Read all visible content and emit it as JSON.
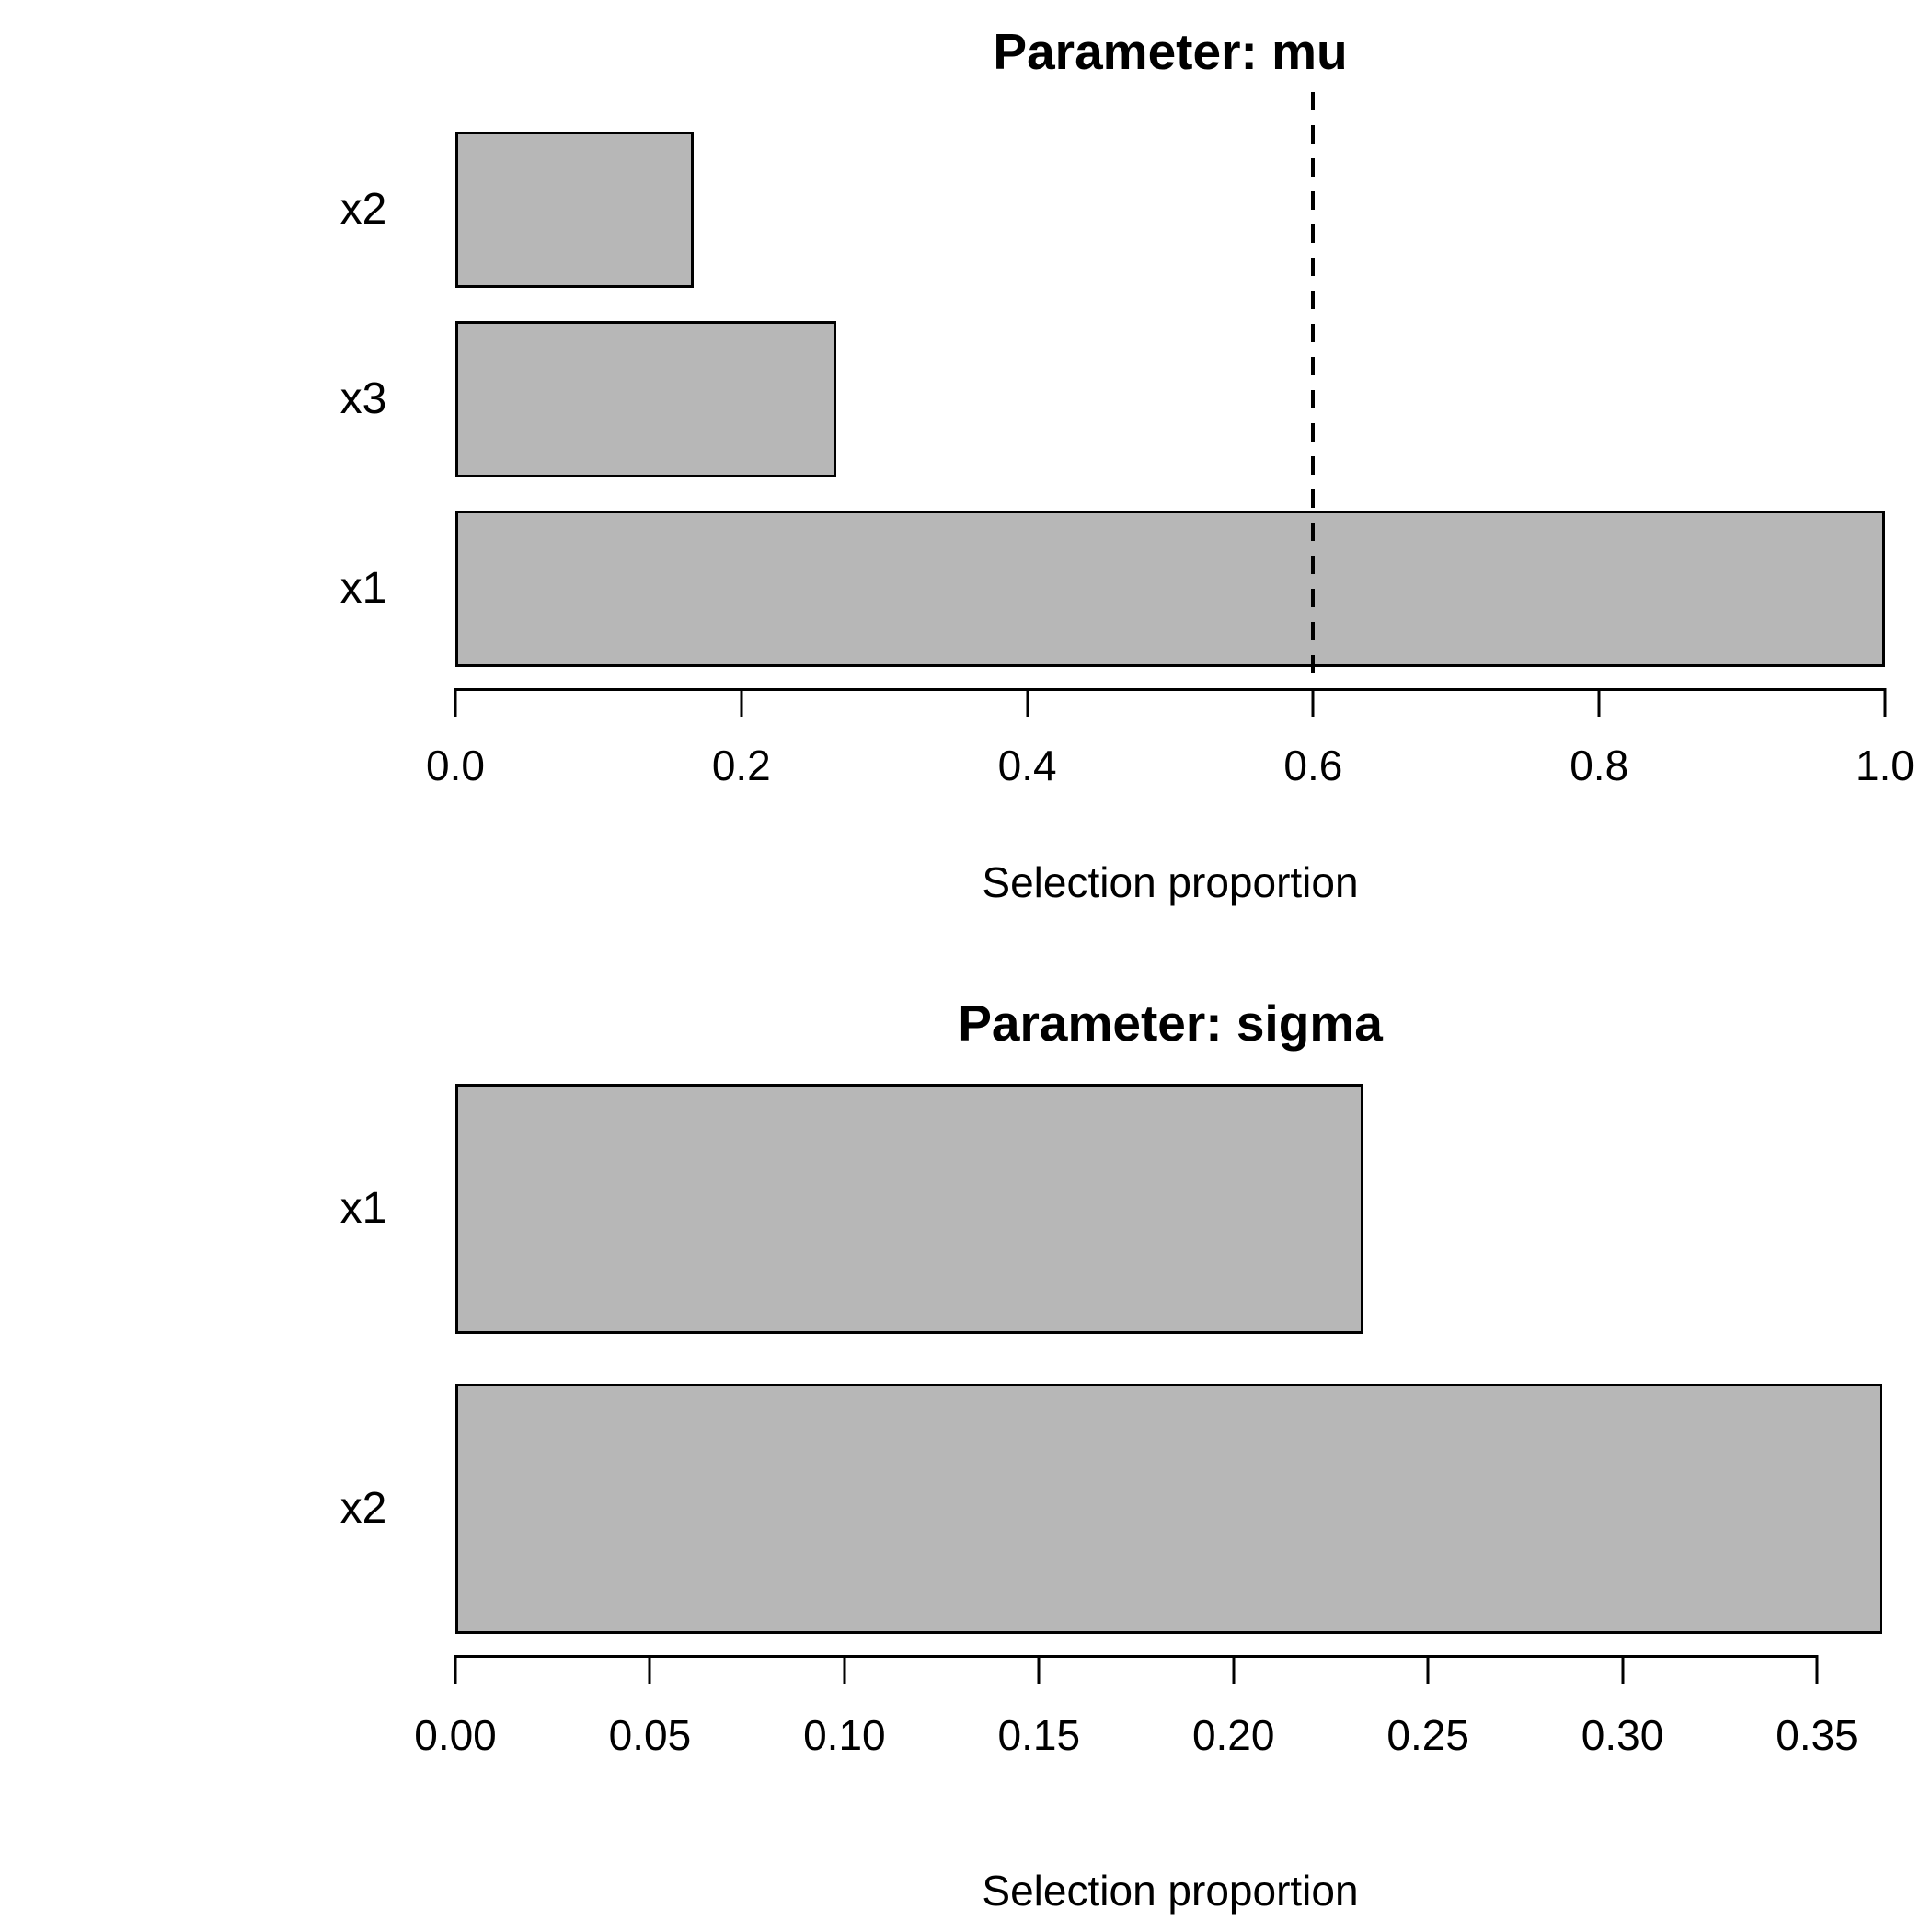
{
  "colors": {
    "background": "#ffffff",
    "bar_fill": "#b7b7b7",
    "bar_border": "#000000",
    "axis_color": "#000000",
    "text_color": "#000000",
    "threshold_line_color": "#000000"
  },
  "chart_data": [
    {
      "type": "bar",
      "orientation": "horizontal",
      "title": "Parameter: mu",
      "xlabel": "Selection proportion",
      "categories_top_to_bottom": [
        "x2",
        "x3",
        "x1"
      ],
      "values": [
        0.1667,
        0.2667,
        1.0
      ],
      "xlim": [
        0,
        1.0
      ],
      "xticks": {
        "values": [
          0.0,
          0.2,
          0.4,
          0.6,
          0.8,
          1.0
        ],
        "labels": [
          "0.0",
          "0.2",
          "0.4",
          "0.6",
          "0.8",
          "1.0"
        ]
      },
      "threshold_dashed_line_x": 0.6,
      "grid": false,
      "legend": false
    },
    {
      "type": "bar",
      "orientation": "horizontal",
      "title": "Parameter: sigma",
      "xlabel": "Selection proportion",
      "categories_top_to_bottom": [
        "x1",
        "x2"
      ],
      "values": [
        0.2333,
        0.3667
      ],
      "xlim": [
        0,
        0.3675
      ],
      "xticks": {
        "values": [
          0.0,
          0.05,
          0.1,
          0.15,
          0.2,
          0.25,
          0.3,
          0.35
        ],
        "labels": [
          "0.00",
          "0.05",
          "0.10",
          "0.15",
          "0.20",
          "0.25",
          "0.30",
          "0.35"
        ]
      },
      "threshold_dashed_line_x": null,
      "grid": false,
      "legend": false
    }
  ]
}
